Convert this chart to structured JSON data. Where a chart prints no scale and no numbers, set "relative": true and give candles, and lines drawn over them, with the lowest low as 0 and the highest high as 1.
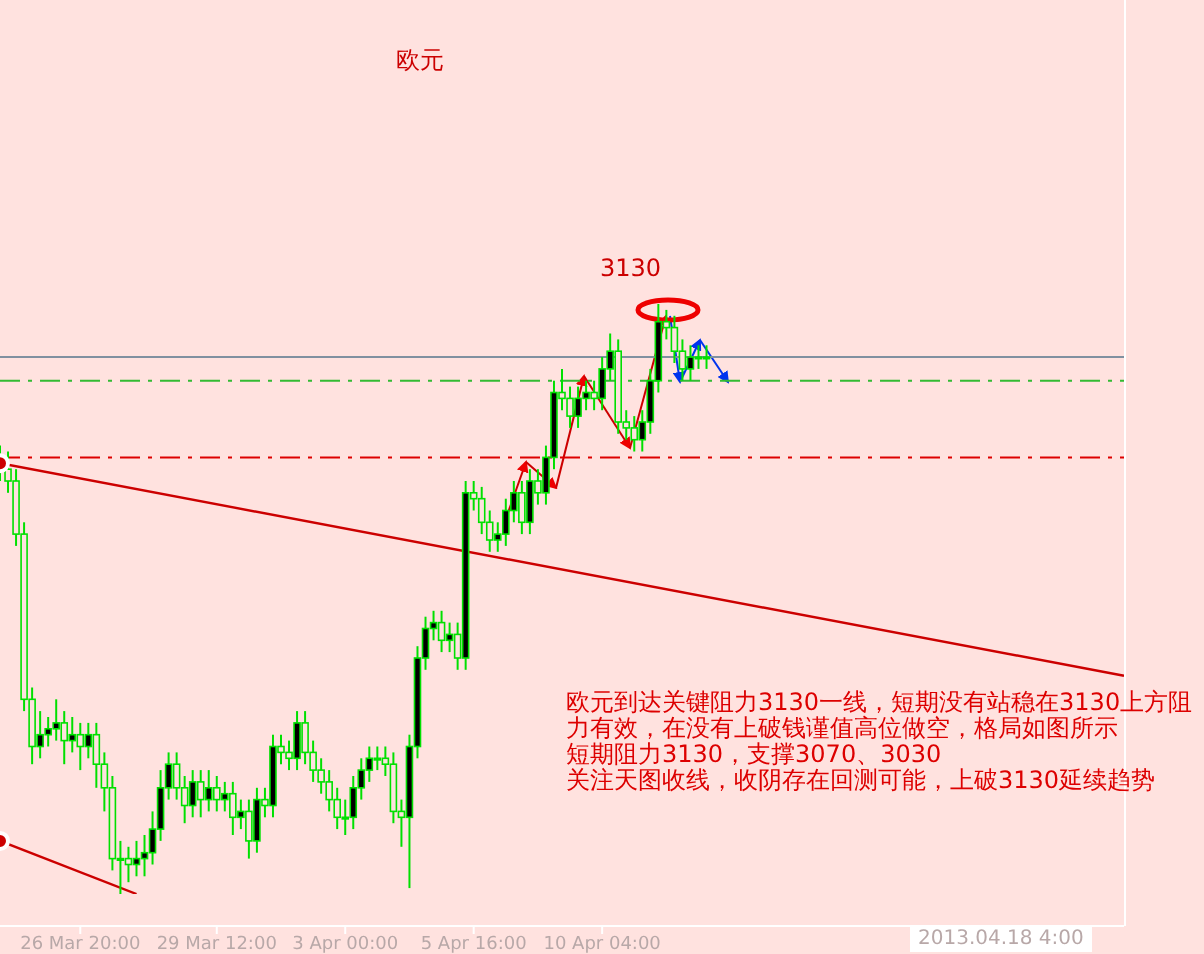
{
  "chart_data": {
    "type": "candlestick",
    "title": "欧元",
    "relative": true,
    "grid": false,
    "color": "#00e000",
    "categories": [
      null,
      null,
      null,
      null,
      null,
      null,
      null,
      null,
      null,
      null,
      "26 Mar 20:00",
      null,
      null,
      null,
      null,
      null,
      null,
      null,
      null,
      null,
      null,
      null,
      null,
      null,
      null,
      null,
      null,
      "29 Mar 12:00",
      null,
      null,
      null,
      null,
      null,
      null,
      null,
      null,
      null,
      null,
      null,
      null,
      null,
      null,
      null,
      "3 Apr 00:00",
      null,
      null,
      null,
      null,
      null,
      null,
      null,
      null,
      null,
      null,
      null,
      null,
      null,
      null,
      null,
      "5 Apr 16:00",
      null,
      null,
      null,
      null,
      null,
      null,
      null,
      null,
      null,
      null,
      null,
      null,
      null,
      null,
      null,
      "10 Apr 04:00",
      null,
      null,
      null,
      null,
      null,
      null,
      null,
      null,
      null,
      null,
      null,
      null,
      null,
      null,
      null,
      null,
      null,
      null,
      null,
      null,
      null,
      null,
      null,
      null,
      null,
      null,
      null,
      null,
      null,
      null,
      null,
      null,
      null,
      null,
      null,
      null,
      null,
      null,
      null,
      null,
      null,
      null,
      null,
      null,
      null,
      null,
      null,
      null,
      null,
      null,
      null,
      null,
      null,
      null,
      null,
      null,
      null,
      null,
      null,
      null,
      null,
      null,
      null,
      null,
      null
    ],
    "ohlc": [
      [
        0.74,
        0.76,
        0.7,
        0.72
      ],
      [
        0.72,
        0.75,
        0.68,
        0.7
      ],
      [
        0.7,
        0.72,
        0.59,
        0.61
      ],
      [
        0.61,
        0.63,
        0.31,
        0.33
      ],
      [
        0.33,
        0.35,
        0.22,
        0.25
      ],
      [
        0.25,
        0.31,
        0.23,
        0.27
      ],
      [
        0.27,
        0.3,
        0.25,
        0.28
      ],
      [
        0.28,
        0.33,
        0.26,
        0.29
      ],
      [
        0.29,
        0.31,
        0.22,
        0.26
      ],
      [
        0.26,
        0.3,
        0.24,
        0.27
      ],
      [
        0.27,
        0.29,
        0.21,
        0.25
      ],
      [
        0.25,
        0.29,
        0.23,
        0.27
      ],
      [
        0.27,
        0.29,
        0.18,
        0.22
      ],
      [
        0.22,
        0.24,
        0.14,
        0.18
      ],
      [
        0.18,
        0.2,
        0.04,
        0.06
      ],
      [
        0.06,
        0.09,
        0.0,
        0.06
      ],
      [
        0.06,
        0.08,
        0.02,
        0.05
      ],
      [
        0.05,
        0.09,
        0.03,
        0.06
      ],
      [
        0.06,
        0.1,
        0.03,
        0.07
      ],
      [
        0.07,
        0.14,
        0.05,
        0.11
      ],
      [
        0.11,
        0.21,
        0.09,
        0.18
      ],
      [
        0.18,
        0.24,
        0.16,
        0.22
      ],
      [
        0.22,
        0.24,
        0.16,
        0.18
      ],
      [
        0.18,
        0.2,
        0.12,
        0.15
      ],
      [
        0.15,
        0.21,
        0.13,
        0.19
      ],
      [
        0.19,
        0.21,
        0.13,
        0.16
      ],
      [
        0.16,
        0.21,
        0.14,
        0.18
      ],
      [
        0.18,
        0.2,
        0.14,
        0.16
      ],
      [
        0.16,
        0.19,
        0.14,
        0.17
      ],
      [
        0.17,
        0.19,
        0.1,
        0.13
      ],
      [
        0.13,
        0.16,
        0.11,
        0.14
      ],
      [
        0.14,
        0.16,
        0.06,
        0.09
      ],
      [
        0.09,
        0.18,
        0.07,
        0.16
      ],
      [
        0.16,
        0.18,
        0.13,
        0.15
      ],
      [
        0.15,
        0.27,
        0.13,
        0.25
      ],
      [
        0.25,
        0.27,
        0.22,
        0.24
      ],
      [
        0.24,
        0.26,
        0.21,
        0.23
      ],
      [
        0.23,
        0.31,
        0.21,
        0.29
      ],
      [
        0.29,
        0.31,
        0.22,
        0.24
      ],
      [
        0.24,
        0.26,
        0.19,
        0.21
      ],
      [
        0.21,
        0.23,
        0.17,
        0.19
      ],
      [
        0.19,
        0.21,
        0.14,
        0.16
      ],
      [
        0.16,
        0.18,
        0.11,
        0.13
      ],
      [
        0.13,
        0.16,
        0.1,
        0.13
      ],
      [
        0.13,
        0.2,
        0.11,
        0.18
      ],
      [
        0.18,
        0.23,
        0.16,
        0.21
      ],
      [
        0.21,
        0.25,
        0.19,
        0.23
      ],
      [
        0.23,
        0.25,
        0.21,
        0.23
      ],
      [
        0.23,
        0.25,
        0.2,
        0.22
      ],
      [
        0.22,
        0.24,
        0.12,
        0.14
      ],
      [
        0.14,
        0.16,
        0.08,
        0.13
      ],
      [
        0.13,
        0.27,
        0.01,
        0.25
      ],
      [
        0.25,
        0.42,
        0.23,
        0.4
      ],
      [
        0.4,
        0.47,
        0.38,
        0.45
      ],
      [
        0.45,
        0.48,
        0.43,
        0.46
      ],
      [
        0.46,
        0.48,
        0.41,
        0.43
      ],
      [
        0.43,
        0.46,
        0.41,
        0.44
      ],
      [
        0.44,
        0.46,
        0.38,
        0.4
      ],
      [
        0.4,
        0.7,
        0.38,
        0.68
      ],
      [
        0.68,
        0.7,
        0.65,
        0.67
      ],
      [
        0.67,
        0.69,
        0.61,
        0.63
      ],
      [
        0.63,
        0.65,
        0.58,
        0.6
      ],
      [
        0.6,
        0.63,
        0.58,
        0.61
      ],
      [
        0.61,
        0.67,
        0.59,
        0.65
      ],
      [
        0.65,
        0.7,
        0.63,
        0.68
      ],
      [
        0.68,
        0.7,
        0.61,
        0.63
      ],
      [
        0.63,
        0.72,
        0.61,
        0.7
      ],
      [
        0.7,
        0.72,
        0.66,
        0.68
      ],
      [
        0.68,
        0.76,
        0.66,
        0.74
      ],
      [
        0.74,
        0.87,
        0.72,
        0.85
      ],
      [
        0.85,
        0.89,
        0.82,
        0.84
      ],
      [
        0.84,
        0.86,
        0.79,
        0.81
      ],
      [
        0.81,
        0.86,
        0.79,
        0.84
      ],
      [
        0.84,
        0.87,
        0.82,
        0.85
      ],
      [
        0.85,
        0.87,
        0.82,
        0.84
      ],
      [
        0.84,
        0.91,
        0.82,
        0.89
      ],
      [
        0.89,
        0.95,
        0.87,
        0.92
      ],
      [
        0.92,
        0.94,
        0.78,
        0.8
      ],
      [
        0.8,
        0.82,
        0.77,
        0.79
      ],
      [
        0.79,
        0.81,
        0.75,
        0.77
      ],
      [
        0.77,
        0.82,
        0.75,
        0.8
      ],
      [
        0.8,
        0.89,
        0.78,
        0.87
      ],
      [
        0.87,
        1.0,
        0.85,
        0.97
      ],
      [
        0.97,
        0.99,
        0.94,
        0.96
      ],
      [
        0.96,
        0.98,
        0.9,
        0.92
      ],
      [
        0.92,
        0.94,
        0.87,
        0.89
      ],
      [
        0.89,
        0.93,
        0.87,
        0.91
      ],
      [
        0.91,
        0.93,
        0.89,
        0.91
      ],
      [
        0.91,
        0.93,
        0.89,
        0.91
      ],
      null,
      null,
      null,
      null,
      null,
      null,
      null,
      null,
      null,
      null,
      null,
      null,
      null,
      null,
      null,
      null,
      null,
      null,
      null,
      null,
      null,
      null,
      null,
      null,
      null,
      null,
      null,
      null,
      null,
      null,
      null,
      null,
      null,
      null,
      null,
      null,
      null,
      null,
      null,
      null,
      null,
      null,
      null,
      null,
      null,
      null,
      null,
      null,
      null,
      null,
      null,
      null
    ],
    "series": [
      {
        "type": "line",
        "color": "#cc0000",
        "values": [
          0.73,
          null,
          null,
          null,
          null,
          null,
          null,
          null,
          null,
          null,
          null,
          null,
          null,
          null,
          null,
          null,
          null,
          null,
          null,
          null,
          null,
          null,
          null,
          null,
          null,
          null,
          null,
          null,
          null,
          null,
          null,
          null,
          null,
          null,
          null,
          null,
          null,
          null,
          null,
          null,
          null,
          null,
          null,
          null,
          null,
          null,
          null,
          null,
          null,
          null,
          null,
          null,
          null,
          null,
          null,
          null,
          null,
          null,
          null,
          null,
          null,
          null,
          null,
          null,
          null,
          null,
          null,
          null,
          null,
          null,
          null,
          null,
          null,
          null,
          null,
          null,
          null,
          null,
          null,
          null,
          null,
          null,
          null,
          null,
          null,
          null,
          null,
          null,
          null,
          null,
          null,
          null,
          null,
          null,
          null,
          null,
          null,
          null,
          null,
          null,
          null,
          null,
          null,
          null,
          null,
          null,
          null,
          null,
          null,
          null,
          null,
          null,
          null,
          null,
          null,
          null,
          null,
          null,
          null,
          null,
          null,
          null,
          null,
          null,
          null,
          null,
          null,
          null,
          null,
          null,
          null,
          null,
          null,
          null,
          null,
          null,
          null,
          null,
          null,
          null,
          0.37
        ]
      },
      {
        "type": "line",
        "color": "#cc0000",
        "values": [
          0.09,
          null,
          null,
          null,
          null,
          null,
          null,
          null,
          null,
          null,
          null,
          null,
          null,
          null,
          null,
          null,
          null,
          0.0,
          null,
          null,
          null,
          null,
          null,
          null,
          null,
          null,
          null,
          null,
          null,
          null,
          null,
          null,
          null,
          null,
          null,
          null,
          null,
          null,
          null,
          null,
          null,
          null,
          null,
          null,
          null,
          null,
          null,
          null,
          null,
          null,
          null,
          null,
          null,
          null,
          null,
          null,
          null,
          null,
          null,
          null,
          null,
          null,
          null,
          null,
          null,
          null,
          null,
          null,
          null,
          null,
          null,
          null,
          null,
          null,
          null,
          null,
          null,
          null,
          null,
          null,
          null,
          null,
          null,
          null,
          null,
          null,
          null,
          null,
          null,
          null,
          null,
          null,
          null,
          null,
          null,
          null,
          null,
          null,
          null,
          null,
          null,
          null,
          null,
          null,
          null,
          null,
          null,
          null,
          null,
          null,
          null,
          null,
          null,
          null,
          null,
          null,
          null,
          null,
          null,
          null,
          null,
          null,
          null,
          null,
          null,
          null,
          null,
          null,
          null,
          null,
          null,
          null,
          null,
          null,
          null,
          null,
          null,
          null,
          null,
          null,
          null
        ]
      }
    ],
    "ref_lines": [
      {
        "axis": "y",
        "value": 0.74,
        "color": "#dd0000",
        "line_style": "dashed"
      },
      {
        "axis": "y",
        "value": 0.87,
        "color": "#33bb33",
        "line_style": "dashed"
      },
      {
        "axis": "y",
        "value": 0.91,
        "color": "#8090a0",
        "line_style": "solid"
      }
    ],
    "annotations": [
      "3130",
      "欧元到达关键阻力3130一线，短期没有站稳在3130上方阻",
      "力有效，在没有上破钱谨值高位做空，格局如图所示",
      "短期阻力3130，支撑3070、3030",
      "关注天图收线，收阴存在回测可能，上破3130延续趋势",
      "2013.04.18 4:00"
    ]
  }
}
